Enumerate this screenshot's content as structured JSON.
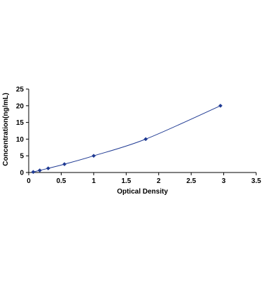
{
  "chart_data": {
    "type": "scatter",
    "title": "",
    "xlabel": "Optical Density",
    "ylabel": "Concentration(ng/mL)",
    "xlim": [
      0,
      3.5
    ],
    "ylim": [
      0,
      25
    ],
    "x_ticks": [
      "0",
      "0.5",
      "1",
      "1.5",
      "2",
      "2.5",
      "3",
      "3.5"
    ],
    "y_ticks": [
      "0",
      "5",
      "10",
      "15",
      "20",
      "25"
    ],
    "grid": false,
    "legend": "none",
    "series": [
      {
        "color": "#1f3a93",
        "marker": "diamond",
        "line": "smooth",
        "x": [
          0.07,
          0.17,
          0.3,
          0.55,
          1.0,
          1.8,
          2.95
        ],
        "y": [
          0.16,
          0.63,
          1.25,
          2.5,
          5,
          10,
          20
        ]
      }
    ]
  }
}
